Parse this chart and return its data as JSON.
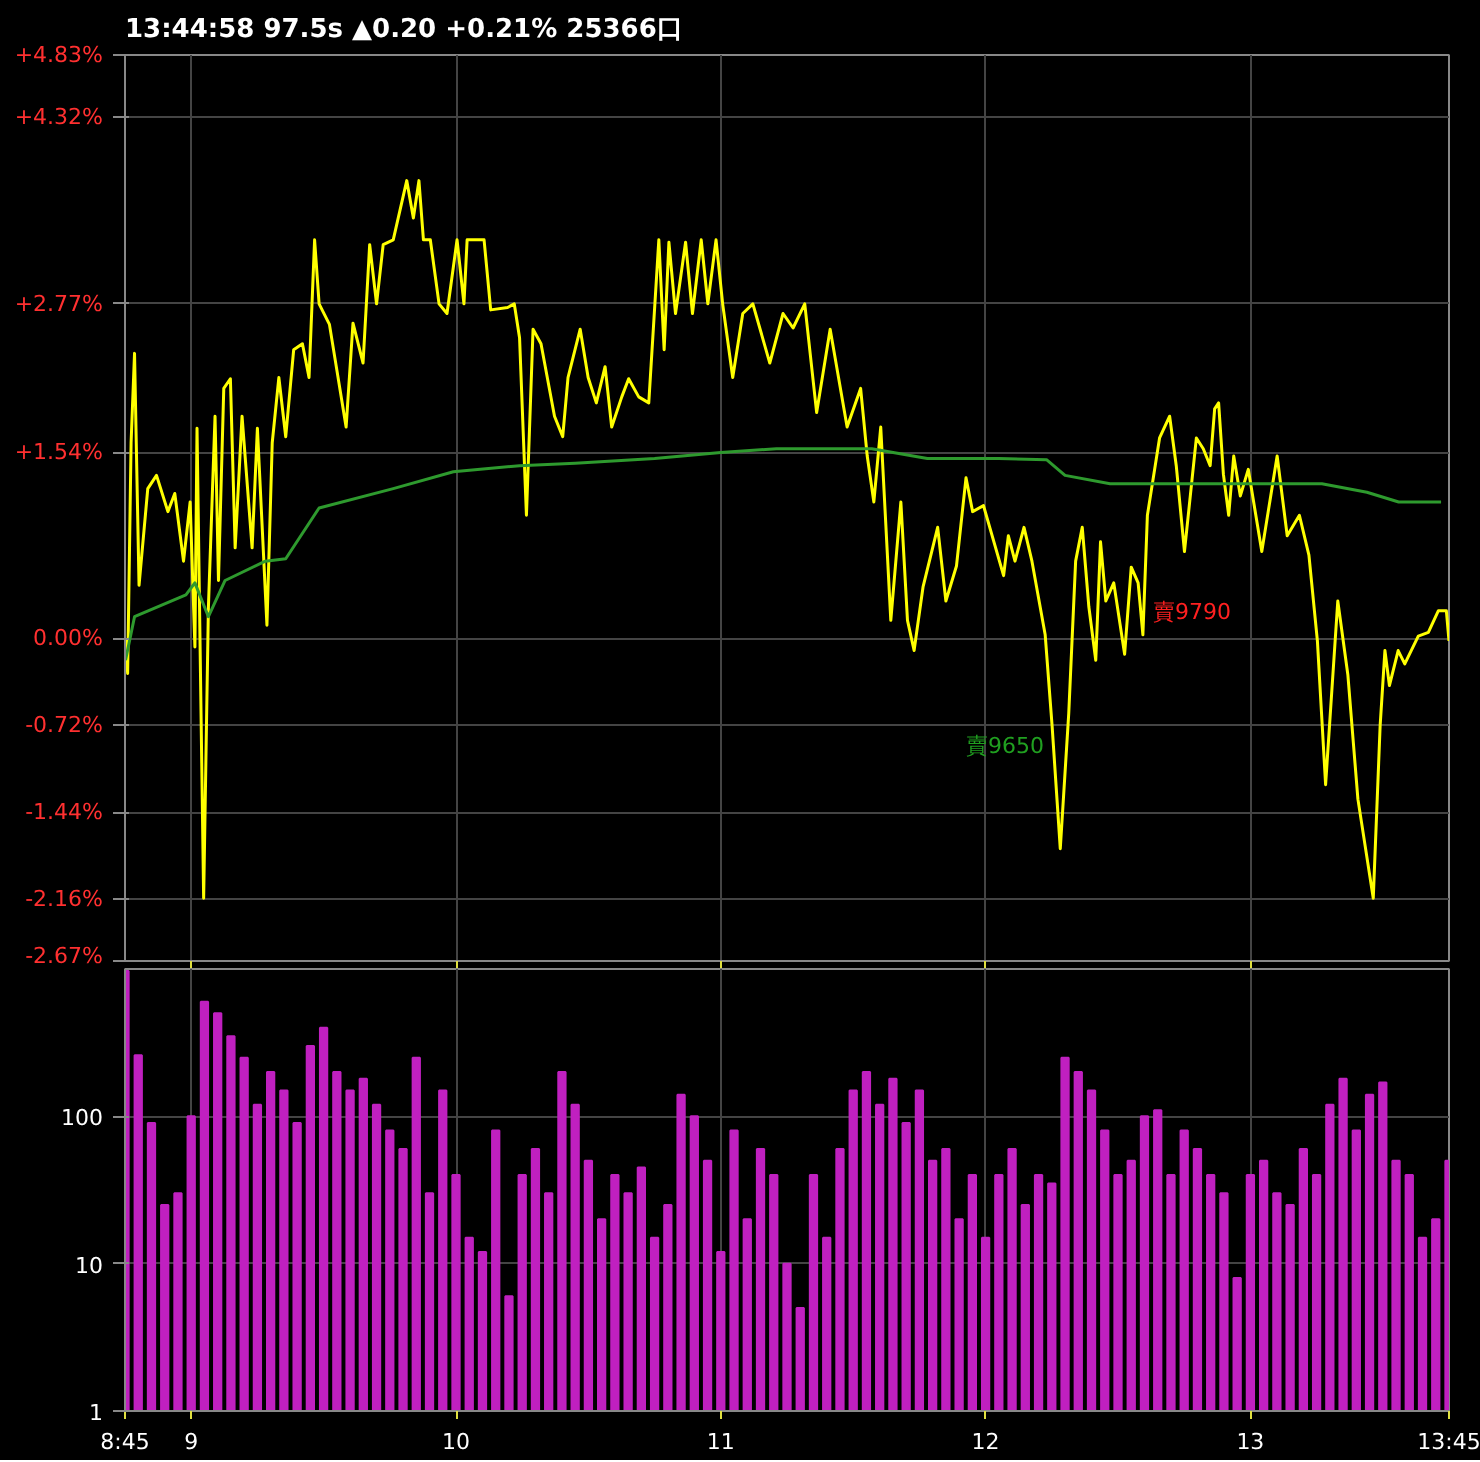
{
  "chart_data": [
    {
      "type": "line",
      "title": "13:44:58  97.5s  ▲0.20  +0.21%  25366口",
      "xlim": [
        8.75,
        13.75
      ],
      "xticks": [
        9,
        10,
        11,
        12,
        13
      ],
      "ylim": [
        -2.67,
        4.83
      ],
      "yticks": [
        {
          "value": -2.67,
          "label": "-2.67%"
        },
        {
          "value": -2.16,
          "label": "-2.16%"
        },
        {
          "value": -1.44,
          "label": "-1.44%"
        },
        {
          "value": -0.72,
          "label": "-0.72%"
        },
        {
          "value": 0,
          "label": "0.00%"
        },
        {
          "value": 1.54,
          "label": "+1.54%"
        },
        {
          "value": 2.77,
          "label": "+2.77%"
        },
        {
          "value": 4.32,
          "label": "+4.32%"
        },
        {
          "value": 4.83,
          "label": "+4.83%"
        }
      ],
      "tick_labels": "y",
      "grid": true,
      "annotations": [
        {
          "text": "賣9790",
          "x": 12.594,
          "y": 0.03
        },
        {
          "text": "賣9650",
          "x": 12.251,
          "y": -0.72
        }
      ],
      "series": [
        {
          "color": "#ffff00",
          "x": [
            8.752,
            8.76,
            8.773,
            8.786,
            8.803,
            8.836,
            8.869,
            8.912,
            8.938,
            8.971,
            8.996,
            9.014,
            9.022,
            9.047,
            9.065,
            9.09,
            9.103,
            9.123,
            9.148,
            9.166,
            9.192,
            9.23,
            9.25,
            9.286,
            9.306,
            9.331,
            9.357,
            9.387,
            9.42,
            9.445,
            9.466,
            9.483,
            9.522,
            9.585,
            9.611,
            9.649,
            9.674,
            9.7,
            9.725,
            9.763,
            9.814,
            9.839,
            9.86,
            9.877,
            9.903,
            9.936,
            9.966,
            10.004,
            10.03,
            10.042,
            10.106,
            10.131,
            10.195,
            10.22,
            10.24,
            10.266,
            10.291,
            10.321,
            10.372,
            10.403,
            10.423,
            10.469,
            10.499,
            10.53,
            10.563,
            10.588,
            10.626,
            10.652,
            10.69,
            10.728,
            10.766,
            10.786,
            10.804,
            10.829,
            10.867,
            10.893,
            10.926,
            10.951,
            10.982,
            11.007,
            11.045,
            11.083,
            11.121,
            11.185,
            11.235,
            11.273,
            11.317,
            11.362,
            11.413,
            11.477,
            11.528,
            11.553,
            11.578,
            11.604,
            11.642,
            11.68,
            11.705,
            11.73,
            11.764,
            11.819,
            11.85,
            11.89,
            11.926,
            11.951,
            11.992,
            12.068,
            12.086,
            12.111,
            12.145,
            12.175,
            12.225,
            12.251,
            12.282,
            12.314,
            12.34,
            12.365,
            12.39,
            12.416,
            12.434,
            12.454,
            12.484,
            12.525,
            12.55,
            12.576,
            12.594,
            12.611,
            12.657,
            12.695,
            12.72,
            12.751,
            12.796,
            12.822,
            12.848,
            12.865,
            12.88,
            12.898,
            12.918,
            12.937,
            12.962,
            12.992,
            13.043,
            13.101,
            13.139,
            13.185,
            13.221,
            13.253,
            13.284,
            13.33,
            13.368,
            13.406,
            13.464,
            13.49,
            13.508,
            13.525,
            13.558,
            13.583,
            13.634,
            13.672,
            13.71,
            13.74,
            13.75
          ],
          "values": [
            0.0,
            -0.29,
            1.62,
            2.36,
            0.44,
            1.24,
            1.35,
            1.05,
            1.2,
            0.64,
            1.13,
            -0.07,
            1.74,
            -2.15,
            0.26,
            1.84,
            0.48,
            2.07,
            2.15,
            0.75,
            1.84,
            0.75,
            1.74,
            0.11,
            1.62,
            2.16,
            1.67,
            2.39,
            2.44,
            2.16,
            3.3,
            2.77,
            2.6,
            1.75,
            2.61,
            2.28,
            3.26,
            2.77,
            3.26,
            3.3,
            3.79,
            3.48,
            3.79,
            3.3,
            3.3,
            2.77,
            2.69,
            3.3,
            2.77,
            3.3,
            3.3,
            2.72,
            2.74,
            2.77,
            2.49,
            1.02,
            2.56,
            2.44,
            1.84,
            1.67,
            2.16,
            2.56,
            2.16,
            1.95,
            2.25,
            1.75,
            2.0,
            2.15,
            2.0,
            1.95,
            3.3,
            2.39,
            3.28,
            2.69,
            3.28,
            2.69,
            3.3,
            2.77,
            3.3,
            2.77,
            2.16,
            2.69,
            2.77,
            2.28,
            2.69,
            2.57,
            2.77,
            1.87,
            2.56,
            1.75,
            2.07,
            1.51,
            1.13,
            1.75,
            0.15,
            1.13,
            0.15,
            -0.1,
            0.43,
            0.92,
            0.31,
            0.6,
            1.33,
            1.05,
            1.1,
            0.52,
            0.85,
            0.64,
            0.92,
            0.64,
            0.03,
            -0.72,
            -1.74,
            -0.62,
            0.64,
            0.92,
            0.26,
            -0.18,
            0.8,
            0.31,
            0.46,
            -0.13,
            0.59,
            0.46,
            0.03,
            1.02,
            1.66,
            1.84,
            1.43,
            0.72,
            1.66,
            1.57,
            1.43,
            1.9,
            1.95,
            1.36,
            1.02,
            1.51,
            1.18,
            1.4,
            0.72,
            1.51,
            0.85,
            1.02,
            0.69,
            -0.02,
            -1.21,
            0.31,
            -0.3,
            -1.33,
            -2.15,
            -0.72,
            -0.1,
            -0.39,
            -0.1,
            -0.21,
            0.02,
            0.05,
            0.23,
            0.23,
            -0.02
          ]
        },
        {
          "color": "#2e9a2e",
          "x": [
            8.752,
            8.786,
            8.98,
            9.014,
            9.065,
            9.128,
            9.28,
            9.357,
            9.483,
            9.763,
            9.99,
            10.24,
            10.45,
            10.75,
            11.0,
            11.21,
            11.57,
            11.78,
            12.05,
            12.23,
            12.3,
            12.47,
            13.27,
            13.44,
            13.56,
            13.72
          ],
          "values": [
            -0.18,
            0.18,
            0.36,
            0.46,
            0.18,
            0.48,
            0.64,
            0.66,
            1.08,
            1.24,
            1.38,
            1.43,
            1.45,
            1.49,
            1.54,
            1.57,
            1.57,
            1.49,
            1.49,
            1.48,
            1.35,
            1.28,
            1.28,
            1.21,
            1.13,
            1.13
          ]
        }
      ]
    },
    {
      "type": "bar",
      "color": "#c020c0",
      "log": "y",
      "xlim": [
        8.75,
        13.75
      ],
      "xticks": [
        {
          "value": 8.75,
          "label": "8:45"
        },
        9,
        10,
        11,
        12,
        13,
        {
          "value": 13.75,
          "label": "13:45"
        }
      ],
      "ylim": [
        1,
        1000
      ],
      "yticks": [
        1,
        10,
        100
      ],
      "grid": true,
      "x": [
        8.75,
        8.8,
        8.85,
        8.9,
        8.95,
        9.0,
        9.05,
        9.1,
        9.15,
        9.2,
        9.25,
        9.3,
        9.35,
        9.4,
        9.45,
        9.5,
        9.55,
        9.6,
        9.65,
        9.7,
        9.75,
        9.8,
        9.85,
        9.9,
        9.95,
        10.0,
        10.05,
        10.1,
        10.15,
        10.2,
        10.25,
        10.3,
        10.35,
        10.4,
        10.45,
        10.5,
        10.55,
        10.6,
        10.65,
        10.7,
        10.75,
        10.8,
        10.85,
        10.9,
        10.95,
        11.0,
        11.05,
        11.1,
        11.15,
        11.2,
        11.25,
        11.3,
        11.35,
        11.4,
        11.45,
        11.5,
        11.55,
        11.6,
        11.65,
        11.7,
        11.75,
        11.8,
        11.85,
        11.9,
        11.95,
        12.0,
        12.05,
        12.1,
        12.15,
        12.2,
        12.25,
        12.3,
        12.35,
        12.4,
        12.45,
        12.5,
        12.55,
        12.6,
        12.65,
        12.7,
        12.75,
        12.8,
        12.85,
        12.9,
        12.95,
        13.0,
        13.05,
        13.1,
        13.15,
        13.2,
        13.25,
        13.3,
        13.35,
        13.4,
        13.45,
        13.5,
        13.55,
        13.6,
        13.65,
        13.7,
        13.75
      ],
      "values": [
        970,
        260,
        90,
        25,
        30,
        100,
        600,
        500,
        350,
        250,
        120,
        200,
        150,
        90,
        300,
        400,
        200,
        150,
        180,
        120,
        80,
        60,
        250,
        30,
        150,
        40,
        15,
        12,
        80,
        6,
        40,
        60,
        30,
        200,
        120,
        50,
        20,
        40,
        30,
        45,
        15,
        25,
        140,
        100,
        50,
        12,
        80,
        20,
        60,
        40,
        10,
        5,
        40,
        15,
        60,
        150,
        200,
        120,
        180,
        90,
        150,
        50,
        60,
        20,
        40,
        15,
        40,
        60,
        25,
        40,
        35,
        250,
        200,
        150,
        80,
        40,
        50,
        100,
        110,
        40,
        80,
        60,
        40,
        30,
        8,
        40,
        50,
        30,
        25,
        60,
        40,
        120,
        180,
        80,
        140,
        170,
        50,
        40,
        15,
        20,
        50
      ]
    }
  ]
}
